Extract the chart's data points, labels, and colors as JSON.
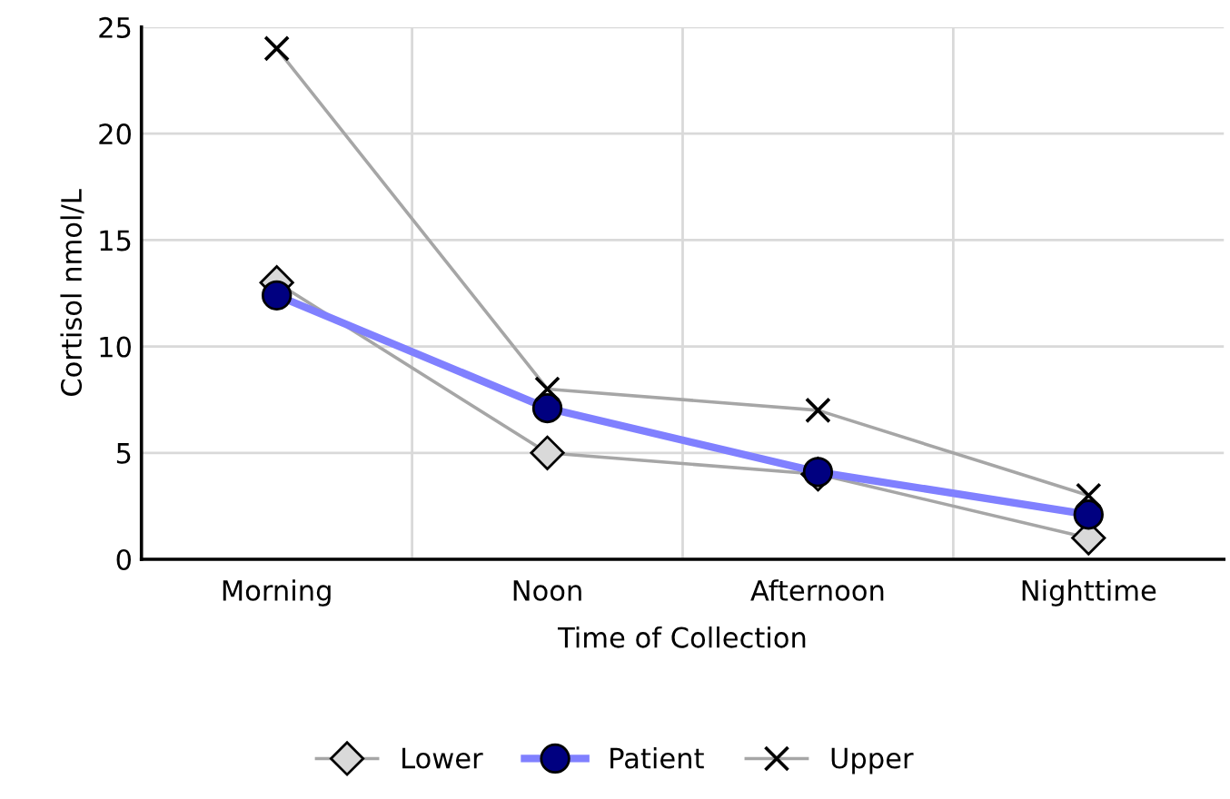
{
  "chart_data": {
    "type": "line",
    "xlabel": "Time of Collection",
    "ylabel": "Cortisol nmol/L",
    "categories": [
      "Morning",
      "Noon",
      "Afternoon",
      "Nighttime"
    ],
    "series": [
      {
        "name": "Lower",
        "color": "#a6a6a6",
        "marker": "diamond",
        "values": [
          13,
          5,
          4,
          1
        ]
      },
      {
        "name": "Patient",
        "color": "#8080ff",
        "marker": "circle",
        "values": [
          12.4,
          7.1,
          4.1,
          2.1
        ]
      },
      {
        "name": "Upper",
        "color": "#a6a6a6",
        "marker": "cross",
        "values": [
          24,
          8,
          7,
          3
        ]
      }
    ],
    "ylim": [
      0,
      25
    ],
    "yticks": [
      0,
      5,
      10,
      15,
      20,
      25
    ],
    "grid": true,
    "legend": "bottom"
  }
}
